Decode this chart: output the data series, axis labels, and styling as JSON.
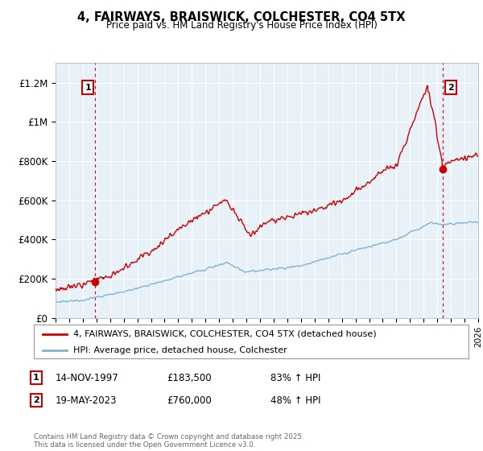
{
  "title": "4, FAIRWAYS, BRAISWICK, COLCHESTER, CO4 5TX",
  "subtitle": "Price paid vs. HM Land Registry's House Price Index (HPI)",
  "ylim": [
    0,
    1300000
  ],
  "yticks": [
    0,
    200000,
    400000,
    600000,
    800000,
    1000000,
    1200000
  ],
  "ytick_labels": [
    "£0",
    "£200K",
    "£400K",
    "£600K",
    "£800K",
    "£1M",
    "£1.2M"
  ],
  "xlim_start": 1995.0,
  "xlim_end": 2026.0,
  "house_color": "#cc0000",
  "hpi_color": "#7fb3d3",
  "background_color": "#ffffff",
  "plot_bg_color": "#e8f0f8",
  "grid_color": "#ffffff",
  "sale1_year": 1997.87,
  "sale1_price": 183500,
  "sale1_label": "1",
  "sale2_year": 2023.38,
  "sale2_price": 760000,
  "sale2_label": "2",
  "legend_house": "4, FAIRWAYS, BRAISWICK, COLCHESTER, CO4 5TX (detached house)",
  "legend_hpi": "HPI: Average price, detached house, Colchester",
  "footnote": "Contains HM Land Registry data © Crown copyright and database right 2025.\nThis data is licensed under the Open Government Licence v3.0.",
  "table_rows": [
    {
      "num": "1",
      "date": "14-NOV-1997",
      "price": "£183,500",
      "change": "83% ↑ HPI"
    },
    {
      "num": "2",
      "date": "19-MAY-2023",
      "price": "£760,000",
      "change": "48% ↑ HPI"
    }
  ]
}
